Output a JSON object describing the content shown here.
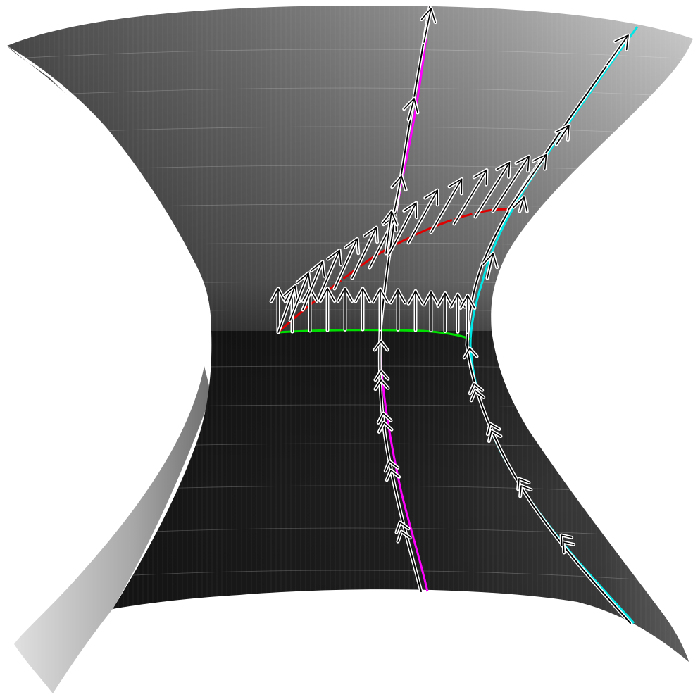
{
  "figure": {
    "surface": "hyperboloid-of-one-sheet",
    "shading": "grayscale",
    "colors": {
      "background": "#ffffff",
      "surface_dark": "#111111",
      "surface_light": "#d6d6d6",
      "magenta_curve": "#ff00ff",
      "cyan_curve": "#00e5e5",
      "red_curve": "#e00000",
      "green_curve": "#00dd00",
      "arrow_outline": "#ffffff",
      "arrow_core": "#000000"
    },
    "curves": [
      {
        "name": "magenta-geodesic",
        "color": "#ff00ff",
        "style": "solid"
      },
      {
        "name": "cyan-geodesic",
        "color": "#00e5e5",
        "style": "solid"
      },
      {
        "name": "red-curve",
        "color": "#e00000",
        "style": "dashed"
      },
      {
        "name": "green-waist-curve",
        "color": "#00dd00",
        "style": "solid"
      }
    ],
    "vector_field_count": 11
  }
}
